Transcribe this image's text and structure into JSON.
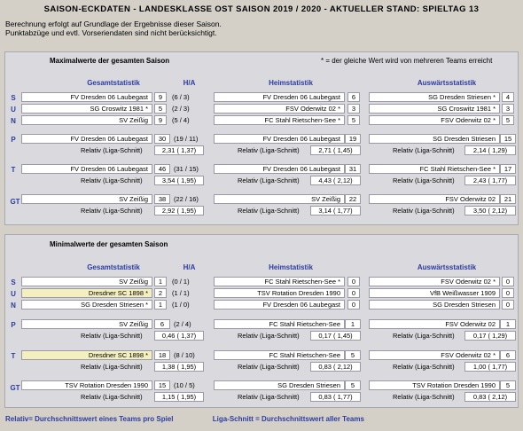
{
  "title": "SAISON-ECKDATEN - LANDESKLASSE OST SAISON 2019 / 2020 - AKTUELLER STAND:  SPIELTAG 13",
  "notes": [
    "Berechnung erfolgt auf Grundlage der Ergebnisse dieser Saison.",
    "Punktabzüge und evtl. Vorseriendaten sind nicht berücksichtigt."
  ],
  "max": {
    "heading": "Maximalwerte der gesamten Saison",
    "legend": "* = der gleiche Wert wird von mehreren Teams erreicht",
    "col_gesamt": "Gesamtstatistik",
    "col_ha": "H/A",
    "col_heim": "Heimstatistik",
    "col_ausw": "Auswärtsstatistik",
    "rows": {
      "S": {
        "label": "S",
        "g_team": "FV Dresden 06 Laubegast",
        "g_val": "9",
        "g_ha": "(6 / 3)",
        "h_team": "FV Dresden 06 Laubegast",
        "h_val": "6",
        "a_team": "SG Dresden Striesen *",
        "a_val": "4"
      },
      "U": {
        "label": "U",
        "g_team": "SG Croswitz 1981 *",
        "g_val": "5",
        "g_ha": "(2 / 3)",
        "h_team": "FSV Oderwitz 02 *",
        "h_val": "3",
        "a_team": "SG Croswitz 1981 *",
        "a_val": "3"
      },
      "N": {
        "label": "N",
        "g_team": "SV Zeißig",
        "g_val": "9",
        "g_ha": "(5 / 4)",
        "h_team": "FC Stahl Rietschen-See *",
        "h_val": "5",
        "a_team": "FSV Oderwitz 02 *",
        "a_val": "5"
      },
      "P": {
        "label": "P",
        "g_team": "FV Dresden 06 Laubegast",
        "g_val": "30",
        "g_ha": "(19 / 11)",
        "g_rel_label": "Relativ (Liga-Schnitt)",
        "g_rel": "2,31 ( 1,37)",
        "h_team": "FV Dresden 06 Laubegast",
        "h_val": "19",
        "h_rel_label": "Relativ (Liga-Schnitt)",
        "h_rel": "2,71 ( 1,45)",
        "a_team": "SG Dresden Striesen",
        "a_val": "15",
        "a_rel_label": "Relativ (Liga-Schnitt)",
        "a_rel": "2,14 ( 1,29)"
      },
      "T": {
        "label": "T",
        "g_team": "FV Dresden 06 Laubegast",
        "g_val": "46",
        "g_ha": "(31 / 15)",
        "g_rel_label": "Relativ (Liga-Schnitt)",
        "g_rel": "3,54 ( 1,95)",
        "h_team": "FV Dresden 06 Laubegast",
        "h_val": "31",
        "h_rel_label": "Relativ (Liga-Schnitt)",
        "h_rel": "4,43 ( 2,12)",
        "a_team": "FC Stahl Rietschen-See *",
        "a_val": "17",
        "a_rel_label": "Relativ (Liga-Schnitt)",
        "a_rel": "2,43 ( 1,77)"
      },
      "GT": {
        "label": "GT",
        "g_team": "SV Zeißig",
        "g_val": "38",
        "g_ha": "(22 / 16)",
        "g_rel_label": "Relativ (Liga-Schnitt)",
        "g_rel": "2,92 ( 1,95)",
        "h_team": "SV Zeißig",
        "h_val": "22",
        "h_rel_label": "Relativ (Liga-Schnitt)",
        "h_rel": "3,14 ( 1,77)",
        "a_team": "FSV Oderwitz 02",
        "a_val": "21",
        "a_rel_label": "Relativ (Liga-Schnitt)",
        "a_rel": "3,50 ( 2,12)"
      }
    }
  },
  "min": {
    "heading": "Minimalwerte der gesamten Saison",
    "col_gesamt": "Gesamtstatistik",
    "col_ha": "H/A",
    "col_heim": "Heimstatistik",
    "col_ausw": "Auswärtsstatistik",
    "rows": {
      "S": {
        "label": "S",
        "g_team": "SV Zeißig",
        "g_val": "1",
        "g_ha": "(0 / 1)",
        "h_team": "FC Stahl Rietschen-See *",
        "h_val": "0",
        "a_team": "FSV Oderwitz 02 *",
        "a_val": "0"
      },
      "U": {
        "label": "U",
        "g_team": "Dresdner SC 1898 *",
        "g_val": "2",
        "g_ha": "(1 / 1)",
        "h_team": "TSV Rotation Dresden 1990",
        "h_val": "0",
        "a_team": "VfB Weißwasser 1909",
        "a_val": "0"
      },
      "N": {
        "label": "N",
        "g_team": "SG Dresden Striesen *",
        "g_val": "1",
        "g_ha": "(1 / 0)",
        "h_team": "FV Dresden 06 Laubegast",
        "h_val": "0",
        "a_team": "SG Dresden Striesen",
        "a_val": "0"
      },
      "P": {
        "label": "P",
        "g_team": "SV Zeißig",
        "g_val": "6",
        "g_ha": "(2 / 4)",
        "g_rel_label": "Relativ (Liga-Schnitt)",
        "g_rel": "0,46 ( 1,37)",
        "h_team": "FC Stahl Rietschen-See",
        "h_val": "1",
        "h_rel_label": "Relativ (Liga-Schnitt)",
        "h_rel": "0,17 ( 1,45)",
        "a_team": "FSV Oderwitz 02",
        "a_val": "1",
        "a_rel_label": "Relativ (Liga-Schnitt)",
        "a_rel": "0,17 ( 1,29)"
      },
      "T": {
        "label": "T",
        "g_team": "Dresdner SC 1898 *",
        "g_val": "18",
        "g_ha": "(8 / 10)",
        "g_rel_label": "Relativ (Liga-Schnitt)",
        "g_rel": "1,38 ( 1,95)",
        "h_team": "FC Stahl Rietschen-See",
        "h_val": "5",
        "h_rel_label": "Relativ (Liga-Schnitt)",
        "h_rel": "0,83 ( 2,12)",
        "a_team": "FSV Oderwitz 02 *",
        "a_val": "6",
        "a_rel_label": "Relativ (Liga-Schnitt)",
        "a_rel": "1,00 ( 1,77)"
      },
      "GT": {
        "label": "GT",
        "g_team": "TSV Rotation Dresden 1990",
        "g_val": "15",
        "g_ha": "(10 / 5)",
        "g_rel_label": "Relativ (Liga-Schnitt)",
        "g_rel": "1,15 ( 1,95)",
        "h_team": "SG Dresden Striesen",
        "h_val": "5",
        "h_rel_label": "Relativ (Liga-Schnitt)",
        "h_rel": "0,83 ( 1,77)",
        "a_team": "TSV Rotation Dresden 1990",
        "a_val": "5",
        "a_rel_label": "Relativ (Liga-Schnitt)",
        "a_rel": "0,83 ( 2,12)"
      }
    }
  },
  "footer": {
    "relativ": "Relativ= Durchschnittswert eines Teams pro Spiel",
    "liga": "Liga-Schnitt = Durchschnittswert aller Teams"
  }
}
